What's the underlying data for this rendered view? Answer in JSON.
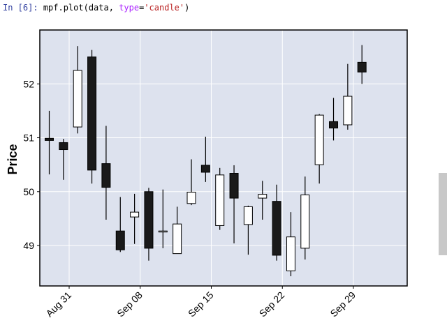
{
  "cell": {
    "prompt": "In [6]:",
    "code_prefix": "mpf.plot(data, ",
    "code_param": "type",
    "code_eq": "=",
    "code_string": "'candle'",
    "code_suffix": ")"
  },
  "colors": {
    "plot_bg": "#dde2ee",
    "grid": "#ffffff",
    "up_fill": "#ffffff",
    "down_fill": "#1a1a1a",
    "edge": "#000000"
  },
  "chart_data": {
    "type": "candlestick",
    "ylabel": "Price",
    "ylim": [
      48.25,
      53.0
    ],
    "yticks": [
      49,
      50,
      51,
      52
    ],
    "xtick_labels": [
      "Aug 31",
      "Sep 08",
      "Sep 15",
      "Sep 22",
      "Sep 29"
    ],
    "xtick_index": [
      1.4,
      6.4,
      11.4,
      16.4,
      21.4
    ],
    "grid": true,
    "candles": [
      {
        "open": 50.99,
        "high": 51.5,
        "low": 50.32,
        "close": 50.95
      },
      {
        "open": 50.91,
        "high": 50.98,
        "low": 50.22,
        "close": 50.78
      },
      {
        "open": 51.2,
        "high": 52.7,
        "low": 51.08,
        "close": 52.25
      },
      {
        "open": 52.5,
        "high": 52.63,
        "low": 50.15,
        "close": 50.4
      },
      {
        "open": 50.52,
        "high": 51.22,
        "low": 49.48,
        "close": 50.08
      },
      {
        "open": 49.27,
        "high": 49.9,
        "low": 48.88,
        "close": 48.92
      },
      {
        "open": 49.53,
        "high": 49.96,
        "low": 49.03,
        "close": 49.62
      },
      {
        "open": 50.0,
        "high": 50.07,
        "low": 48.72,
        "close": 48.95
      },
      {
        "open": 49.27,
        "high": 50.04,
        "low": 48.95,
        "close": 49.27
      },
      {
        "open": 48.85,
        "high": 49.72,
        "low": 48.85,
        "close": 49.4
      },
      {
        "open": 49.78,
        "high": 50.6,
        "low": 49.75,
        "close": 49.99
      },
      {
        "open": 50.49,
        "high": 51.02,
        "low": 50.18,
        "close": 50.36
      },
      {
        "open": 49.37,
        "high": 50.44,
        "low": 49.29,
        "close": 50.31
      },
      {
        "open": 50.34,
        "high": 50.49,
        "low": 49.04,
        "close": 49.88
      },
      {
        "open": 49.39,
        "high": 49.74,
        "low": 48.83,
        "close": 49.72
      },
      {
        "open": 49.88,
        "high": 50.2,
        "low": 49.48,
        "close": 49.95
      },
      {
        "open": 49.82,
        "high": 50.13,
        "low": 48.72,
        "close": 48.82
      },
      {
        "open": 48.53,
        "high": 49.62,
        "low": 48.43,
        "close": 49.16
      },
      {
        "open": 48.95,
        "high": 50.28,
        "low": 48.74,
        "close": 49.94
      },
      {
        "open": 50.5,
        "high": 51.44,
        "low": 50.15,
        "close": 51.42
      },
      {
        "open": 51.3,
        "high": 51.74,
        "low": 50.95,
        "close": 51.18
      },
      {
        "open": 51.24,
        "high": 52.37,
        "low": 51.15,
        "close": 51.77
      },
      {
        "open": 52.4,
        "high": 52.72,
        "low": 52.0,
        "close": 52.22
      }
    ]
  }
}
